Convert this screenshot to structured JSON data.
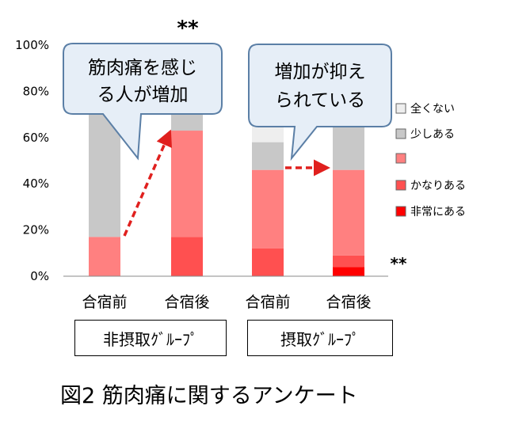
{
  "chart_data": {
    "type": "bar",
    "stacked": true,
    "categories": [
      "合宿前",
      "合宿後",
      "合宿前",
      "合宿後"
    ],
    "groups": [
      "非摂取ｸﾞﾙｰﾌﾟ",
      "摂取ｸﾞﾙｰﾌﾟ"
    ],
    "ylim": [
      0,
      100
    ],
    "yticks": [
      "0%",
      "20%",
      "40%",
      "60%",
      "80%",
      "100%"
    ],
    "series": [
      {
        "name": "非常にある",
        "color": "#ff0000",
        "values": [
          0,
          0,
          0,
          4
        ]
      },
      {
        "name": "かなりある",
        "color": "#ff5050",
        "values": [
          0,
          17,
          12,
          5
        ]
      },
      {
        "name": "",
        "color": "#ff8080",
        "values": [
          17,
          46,
          34,
          37
        ]
      },
      {
        "name": "少しある",
        "color": "#c8c8c8",
        "values": [
          83,
          37,
          12,
          54
        ]
      },
      {
        "name": "全くない",
        "color": "#eeeeee",
        "values": [
          0,
          0,
          42,
          0
        ]
      }
    ],
    "legend_order": [
      4,
      3,
      2,
      1,
      0
    ],
    "legend_position": "right",
    "significance": {
      "top_mark": "**",
      "right_mark": "**"
    },
    "callouts": [
      {
        "lines": [
          "筋肉痛を感じ",
          "る人が増加"
        ]
      },
      {
        "lines": [
          "増加が抑え",
          "られている"
        ]
      }
    ],
    "caption": "図2 筋肉痛に関するアンケート"
  }
}
